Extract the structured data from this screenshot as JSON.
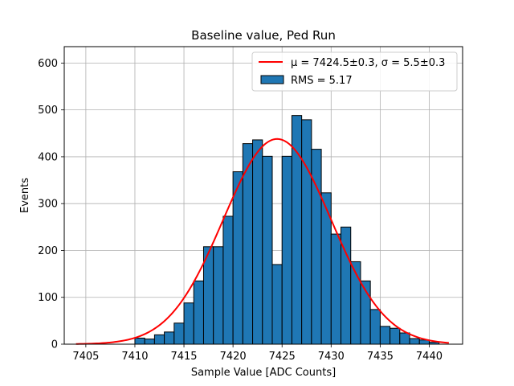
{
  "chart_data": {
    "type": "bar",
    "title": "Baseline value, Ped Run",
    "xlabel": "Sample Value [ADC Counts]",
    "ylabel": "Events",
    "xlim": [
      7402.8,
      7443.4
    ],
    "ylim": [
      0,
      635
    ],
    "xticks": [
      7405,
      7410,
      7415,
      7420,
      7425,
      7430,
      7435,
      7440
    ],
    "yticks": [
      0,
      100,
      200,
      300,
      400,
      500,
      600
    ],
    "grid": true,
    "legend_position": "top-right",
    "bin_width": 1,
    "bins": [
      {
        "x": 7410,
        "value": 13
      },
      {
        "x": 7411,
        "value": 11
      },
      {
        "x": 7412,
        "value": 20
      },
      {
        "x": 7413,
        "value": 26
      },
      {
        "x": 7414,
        "value": 45
      },
      {
        "x": 7415,
        "value": 88
      },
      {
        "x": 7416,
        "value": 135
      },
      {
        "x": 7417,
        "value": 208
      },
      {
        "x": 7418,
        "value": 208
      },
      {
        "x": 7419,
        "value": 273
      },
      {
        "x": 7420,
        "value": 368
      },
      {
        "x": 7421,
        "value": 428
      },
      {
        "x": 7422,
        "value": 436
      },
      {
        "x": 7423,
        "value": 401
      },
      {
        "x": 7424,
        "value": 170
      },
      {
        "x": 7425,
        "value": 401
      },
      {
        "x": 7426,
        "value": 488
      },
      {
        "x": 7427,
        "value": 479
      },
      {
        "x": 7428,
        "value": 416
      },
      {
        "x": 7429,
        "value": 323
      },
      {
        "x": 7430,
        "value": 235
      },
      {
        "x": 7431,
        "value": 250
      },
      {
        "x": 7432,
        "value": 176
      },
      {
        "x": 7433,
        "value": 135
      },
      {
        "x": 7434,
        "value": 74
      },
      {
        "x": 7435,
        "value": 38
      },
      {
        "x": 7436,
        "value": 34
      },
      {
        "x": 7437,
        "value": 24
      },
      {
        "x": 7438,
        "value": 12
      },
      {
        "x": 7439,
        "value": 9
      },
      {
        "x": 7440,
        "value": 4
      }
    ],
    "fit": {
      "mu": 7424.5,
      "sigma": 5.5,
      "amplitude": 438,
      "x_range": [
        7404,
        7442
      ]
    },
    "series": [
      {
        "name": "$\\mu = 7424.5\\pm0.3$, $\\sigma = 5.5\\pm0.3$",
        "label": "μ = 7424.5±0.3, σ = 5.5±0.3",
        "kind": "fit-line",
        "color": "#e41a1c"
      },
      {
        "name": "RMS = 5.17",
        "label": "RMS = 5.17",
        "kind": "histogram",
        "color": "#1f77b4"
      }
    ]
  },
  "colors": {
    "bar_fill": "#1f77b4",
    "bar_edge": "#000000",
    "fit_line": "#ff0000",
    "grid": "#b0b0b0"
  }
}
